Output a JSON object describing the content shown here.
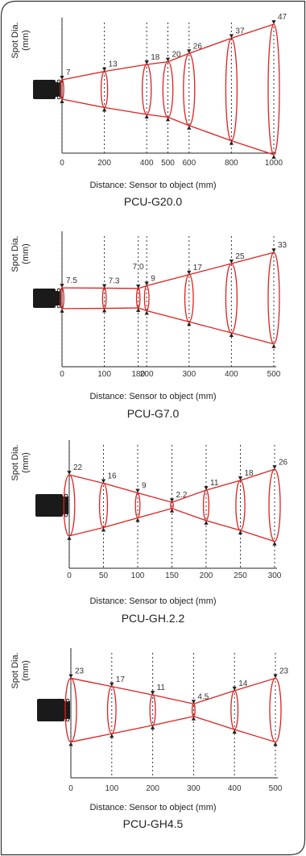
{
  "diagrams": [
    {
      "model": "PCU-G20.0",
      "y_label_line1": "Spot Dia.",
      "y_label_line2": "(mm)",
      "x_label": "Distance: Sensor to object (mm)",
      "points": [
        {
          "x": 0,
          "d": 7,
          "label": "7",
          "tick": "0"
        },
        {
          "x": 200,
          "d": 13,
          "label": "13",
          "tick": "200"
        },
        {
          "x": 400,
          "d": 18,
          "label": "18",
          "tick": "400"
        },
        {
          "x": 500,
          "d": 20,
          "label": "20",
          "tick": "500"
        },
        {
          "x": 600,
          "d": 26,
          "label": "26",
          "tick": "600"
        },
        {
          "x": 800,
          "d": 37,
          "label": "37",
          "tick": "800"
        },
        {
          "x": 1000,
          "d": 47,
          "label": "47",
          "tick": "1000"
        }
      ]
    },
    {
      "model": "PCU-G7.0",
      "y_label_line1": "Spot Dia.",
      "y_label_line2": "(mm)",
      "x_label": "Distance: Sensor to object (mm)",
      "points": [
        {
          "x": 0,
          "d": 7.5,
          "label": "7.5",
          "tick": "0"
        },
        {
          "x": 100,
          "d": 7.3,
          "label": "7.3",
          "tick": "100"
        },
        {
          "x": 180,
          "d": 7.0,
          "label": "7.0",
          "tick": "180"
        },
        {
          "x": 200,
          "d": 9,
          "label": "9",
          "tick": "200"
        },
        {
          "x": 300,
          "d": 17,
          "label": "17",
          "tick": "300"
        },
        {
          "x": 400,
          "d": 25,
          "label": "25",
          "tick": "400"
        },
        {
          "x": 500,
          "d": 33,
          "label": "33",
          "tick": "500"
        }
      ]
    },
    {
      "model": "PCU-GH.2.2",
      "y_label_line1": "Spot Dia.",
      "y_label_line2": "(mm)",
      "x_label": "Distance: Sensor to object (mm)",
      "points": [
        {
          "x": 0,
          "d": 22,
          "label": "22",
          "tick": "0"
        },
        {
          "x": 50,
          "d": 16,
          "label": "16",
          "tick": "50"
        },
        {
          "x": 100,
          "d": 9,
          "label": "9",
          "tick": "100"
        },
        {
          "x": 150,
          "d": 2.2,
          "label": "2.2",
          "tick": "150"
        },
        {
          "x": 200,
          "d": 11,
          "label": "11",
          "tick": "200"
        },
        {
          "x": 250,
          "d": 18,
          "label": "18",
          "tick": "250"
        },
        {
          "x": 300,
          "d": 26,
          "label": "26",
          "tick": "300"
        }
      ]
    },
    {
      "model": "PCU-GH4.5",
      "y_label_line1": "Spot Dia.",
      "y_label_line2": "(mm)",
      "x_label": "Distance: Sensor to object (mm)",
      "points": [
        {
          "x": 0,
          "d": 23,
          "label": "23",
          "tick": "0"
        },
        {
          "x": 100,
          "d": 17,
          "label": "17",
          "tick": "100"
        },
        {
          "x": 200,
          "d": 11,
          "label": "11",
          "tick": "200"
        },
        {
          "x": 300,
          "d": 4.5,
          "label": "4.5",
          "tick": "300"
        },
        {
          "x": 400,
          "d": 14,
          "label": "14",
          "tick": "400"
        },
        {
          "x": 500,
          "d": 23,
          "label": "23",
          "tick": "500"
        }
      ]
    }
  ],
  "colors": {
    "beam": "#e02020",
    "axis": "#222222",
    "sensor": "#1a1a1a",
    "frame": "#333333"
  }
}
